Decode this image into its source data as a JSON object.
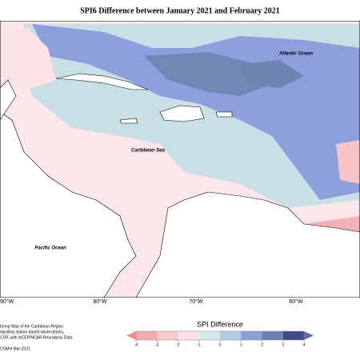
{
  "map": {
    "title": "SPI6 Difference between January 2021 and February 2021",
    "labels": [
      "Atlantic Ocean",
      "Caribbean Sea",
      "Pacific Ocean"
    ],
    "longitudes": [
      "90°W",
      "80°W",
      "70°W",
      "60°W"
    ],
    "footnote": [
      "toring Map of the Caribbean Region.",
      "egrating station based observations,",
      "COF, with NCEP/NCAR Reanalysis Data.",
      "C©MH Mar-2021"
    ],
    "colorbar": {
      "title": "SPI Difference",
      "ticks": [
        -4,
        -3,
        -2,
        -1,
        0,
        1,
        2,
        3,
        4
      ],
      "colors": [
        "#f08c92",
        "#f4a9ae",
        "#f8c9cc",
        "#fbe3e5",
        "#d6e8ec",
        "#b3cce0",
        "#8c9edc",
        "#6c82b0",
        "#3f4c8c",
        "#5f6aa8"
      ]
    }
  }
}
